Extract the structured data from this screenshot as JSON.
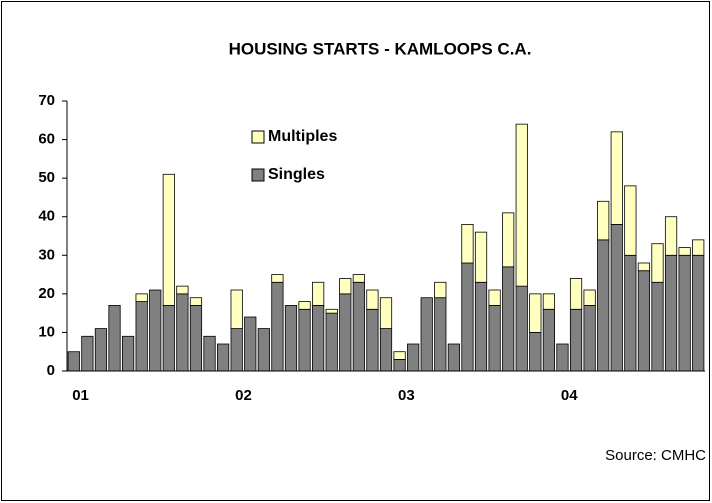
{
  "chart_data": {
    "type": "stacked_bar",
    "title": "HOUSING STARTS - KAMLOOPS C.A.",
    "source": "Source:  CMHC",
    "categories": [
      "01",
      null,
      null,
      null,
      null,
      null,
      null,
      null,
      null,
      null,
      null,
      null,
      "02",
      null,
      null,
      null,
      null,
      null,
      null,
      null,
      null,
      null,
      null,
      null,
      "03",
      null,
      null,
      null,
      null,
      null,
      null,
      null,
      null,
      null,
      null,
      null,
      "04",
      null,
      null,
      null,
      null,
      null,
      null,
      null,
      null,
      null,
      null
    ],
    "series": [
      {
        "name": "Singles",
        "color": "#808080",
        "values": [
          5,
          9,
          11,
          17,
          9,
          18,
          21,
          17,
          20,
          17,
          9,
          7,
          11,
          14,
          11,
          23,
          17,
          16,
          17,
          15,
          20,
          23,
          16,
          11,
          3,
          7,
          19,
          19,
          7,
          28,
          23,
          17,
          27,
          22,
          10,
          16,
          7,
          16,
          17,
          34,
          38,
          30,
          26,
          23,
          30,
          30,
          30
        ]
      },
      {
        "name": "Multiples",
        "color": "#ffffc0",
        "values": [
          0,
          0,
          0,
          0,
          0,
          2,
          0,
          34,
          2,
          2,
          0,
          0,
          10,
          0,
          0,
          2,
          0,
          2,
          6,
          1,
          4,
          2,
          5,
          8,
          2,
          0,
          0,
          4,
          0,
          10,
          13,
          4,
          14,
          42,
          10,
          4,
          0,
          8,
          4,
          10,
          24,
          18,
          2,
          10,
          10,
          2,
          4
        ]
      }
    ],
    "ylim": [
      0,
      70
    ],
    "yticks": [
      0,
      10,
      20,
      30,
      40,
      50,
      60,
      70
    ],
    "grid": false,
    "legend": "top-left"
  }
}
